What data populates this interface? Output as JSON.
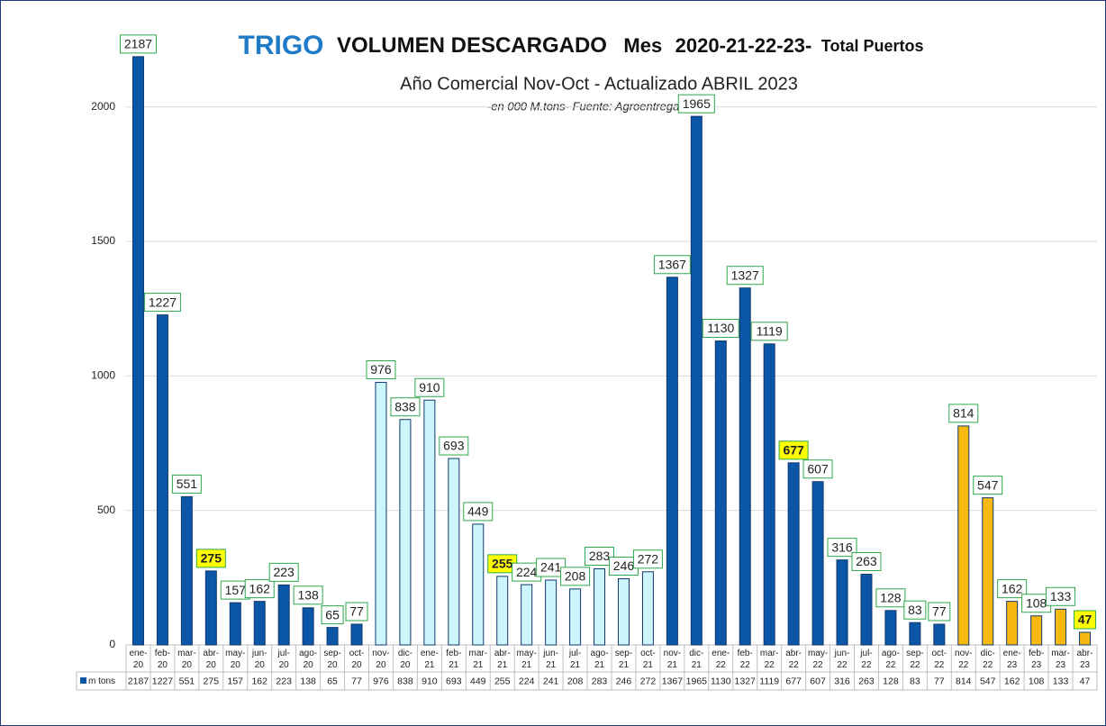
{
  "chart_data": {
    "type": "bar",
    "title": {
      "main": "TRIGO",
      "subject": "VOLUMEN DESCARGADO",
      "period_label": "Mes",
      "years": "2020-21-22-23-",
      "scope": "Total Puertos"
    },
    "subtitle": "Año Comercial Nov-Oct  - Actualizado ABRIL  2023",
    "note": "-en 000  M.tons- Fuente: Agroentregas S.A.",
    "categories": [
      "ene-20",
      "feb-20",
      "mar-20",
      "abr-20",
      "may-20",
      "jun-20",
      "jul-20",
      "ago-20",
      "sep-20",
      "oct-20",
      "nov-20",
      "dic-20",
      "ene-21",
      "feb-21",
      "mar-21",
      "abr-21",
      "may-21",
      "jun-21",
      "jul-21",
      "ago-21",
      "sep-21",
      "oct-21",
      "nov-21",
      "dic-21",
      "ene-22",
      "feb-22",
      "mar-22",
      "abr-22",
      "may-22",
      "jun-22",
      "jul-22",
      "ago-22",
      "sep-22",
      "oct-22",
      "nov-22",
      "dic-22",
      "ene-23",
      "feb-23",
      "mar-23",
      "abr-23"
    ],
    "series": [
      {
        "name": "m tons",
        "color": "#0b56a6",
        "colors": [
          "#0b56a6",
          "#0b56a6",
          "#0b56a6",
          "#0b56a6",
          "#0b56a6",
          "#0b56a6",
          "#0b56a6",
          "#0b56a6",
          "#0b56a6",
          "#0b56a6",
          "#ccf6fb",
          "#ccf6fb",
          "#ccf6fb",
          "#ccf6fb",
          "#ccf6fb",
          "#ccf6fb",
          "#ccf6fb",
          "#ccf6fb",
          "#ccf6fb",
          "#ccf6fb",
          "#ccf6fb",
          "#ccf6fb",
          "#0b56a6",
          "#0b56a6",
          "#0b56a6",
          "#0b56a6",
          "#0b56a6",
          "#0b56a6",
          "#0b56a6",
          "#0b56a6",
          "#0b56a6",
          "#0b56a6",
          "#0b56a6",
          "#0b56a6",
          "#f7b90f",
          "#f7b90f",
          "#f7b90f",
          "#f7b90f",
          "#f7b90f",
          "#f7b90f"
        ],
        "values": [
          2187,
          1227,
          551,
          275,
          157,
          162,
          223,
          138,
          65,
          77,
          976,
          838,
          910,
          693,
          449,
          255,
          224,
          241,
          208,
          283,
          246,
          272,
          1367,
          1965,
          1130,
          1327,
          1119,
          677,
          607,
          316,
          263,
          128,
          83,
          77,
          814,
          547,
          162,
          108,
          133,
          47
        ],
        "highlight": [
          3,
          15,
          27,
          39
        ]
      }
    ],
    "ylim": [
      0,
      2200
    ],
    "yticks": [
      0,
      500,
      1000,
      1500,
      2000
    ],
    "grid": true,
    "legend": "table"
  }
}
